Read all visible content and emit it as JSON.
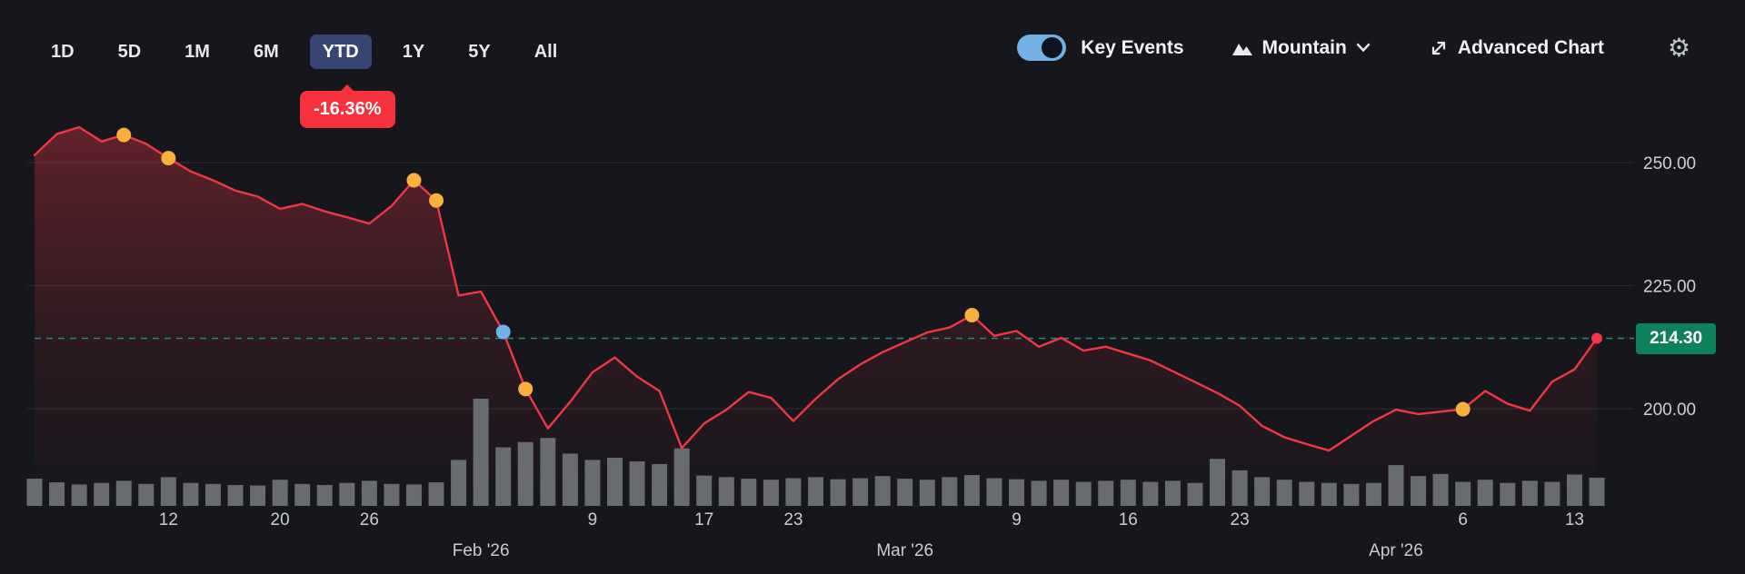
{
  "toolbar": {
    "ranges": [
      {
        "label": "1D",
        "active": false
      },
      {
        "label": "5D",
        "active": false
      },
      {
        "label": "1M",
        "active": false
      },
      {
        "label": "6M",
        "active": false
      },
      {
        "label": "YTD",
        "active": true
      },
      {
        "label": "1Y",
        "active": false
      },
      {
        "label": "5Y",
        "active": false
      },
      {
        "label": "All",
        "active": false
      }
    ],
    "ytd_change": "-16.36%",
    "key_events_label": "Key Events",
    "key_events_on": true,
    "chart_type": "Mountain",
    "advanced_chart_label": "Advanced Chart",
    "settings_icon": "gear-icon"
  },
  "colors": {
    "line": "#f23645",
    "fill_top": "rgba(242,54,69,0.32)",
    "event_yellow": "#f7b13c",
    "event_blue": "#70b2e9",
    "dashed": "#2f9277",
    "price_badge": "#0e815c",
    "change_badge": "#f5323e",
    "active_range_bg": "#364571",
    "toggle": "#72b1e6",
    "volume_bar": "#717479",
    "grid": "#2a2c33"
  },
  "chart_data": {
    "type": "area",
    "style": "mountain",
    "grid": true,
    "legend": "none",
    "ylim": [
      186,
      262
    ],
    "current_price": 214.3,
    "current_price_label": "214.30",
    "x": [
      "Jan 2",
      "Jan 5",
      "Jan 6",
      "Jan 7",
      "Jan 8",
      "Jan 9",
      "Jan 12",
      "Jan 13",
      "Jan 14",
      "Jan 15",
      "Jan 16",
      "Jan 20",
      "Jan 21",
      "Jan 22",
      "Jan 23",
      "Jan 26",
      "Jan 27",
      "Jan 28",
      "Jan 29",
      "Jan 30",
      "Feb 2",
      "Feb 3",
      "Feb 4",
      "Feb 5",
      "Feb 6",
      "Feb 9",
      "Feb 10",
      "Feb 11",
      "Feb 12",
      "Feb 13",
      "Feb 17",
      "Feb 18",
      "Feb 19",
      "Feb 20",
      "Feb 23",
      "Feb 24",
      "Feb 25",
      "Feb 26",
      "Feb 27",
      "Mar 2",
      "Mar 3",
      "Mar 4",
      "Mar 5",
      "Mar 6",
      "Mar 9",
      "Mar 10",
      "Mar 11",
      "Mar 12",
      "Mar 13",
      "Mar 16",
      "Mar 17",
      "Mar 18",
      "Mar 19",
      "Mar 20",
      "Mar 23",
      "Mar 24",
      "Mar 25",
      "Mar 26",
      "Mar 27",
      "Mar 30",
      "Mar 31",
      "Apr 1",
      "Apr 2",
      "Apr 3",
      "Apr 6",
      "Apr 7",
      "Apr 8",
      "Apr 9",
      "Apr 10",
      "Apr 13",
      "Apr 14"
    ],
    "close": [
      251.5,
      255.8,
      257.2,
      254.3,
      255.6,
      253.8,
      250.9,
      248.2,
      246.4,
      244.3,
      243.1,
      240.6,
      241.6,
      240.1,
      238.9,
      237.6,
      241.2,
      246.4,
      242.3,
      223.0,
      223.8,
      215.6,
      204.0,
      196.0,
      201.4,
      207.4,
      210.4,
      206.5,
      203.6,
      192.0,
      197.0,
      199.8,
      203.4,
      202.2,
      197.5,
      202.0,
      206.0,
      209.0,
      211.5,
      213.5,
      215.5,
      216.5,
      219.0,
      214.8,
      215.8,
      212.6,
      214.4,
      211.8,
      212.6,
      211.2,
      209.8,
      207.6,
      205.4,
      203.2,
      200.6,
      196.5,
      194.2,
      192.8,
      191.5,
      194.5,
      197.5,
      199.8,
      198.9,
      199.4,
      199.9,
      203.6,
      201.0,
      199.6,
      205.5,
      208.0,
      214.3
    ],
    "volume": [
      52,
      45,
      41,
      44,
      48,
      42,
      55,
      44,
      42,
      40,
      39,
      50,
      42,
      40,
      44,
      48,
      42,
      41,
      45,
      88,
      205,
      112,
      122,
      130,
      100,
      88,
      92,
      85,
      80,
      110,
      58,
      55,
      52,
      50,
      53,
      55,
      51,
      53,
      57,
      52,
      50,
      55,
      59,
      53,
      51,
      48,
      50,
      46,
      48,
      50,
      46,
      48,
      44,
      90,
      68,
      55,
      50,
      46,
      44,
      42,
      44,
      78,
      57,
      61,
      46,
      50,
      44,
      48,
      46,
      60,
      54
    ],
    "y_axis": [
      {
        "value": 250,
        "label": "250.00"
      },
      {
        "value": 225,
        "label": "225.00"
      },
      {
        "value": 200,
        "label": "200.00"
      }
    ],
    "x_ticks": [
      {
        "i": 6,
        "label": "12",
        "month": false
      },
      {
        "i": 11,
        "label": "20",
        "month": false
      },
      {
        "i": 15,
        "label": "26",
        "month": false
      },
      {
        "i": 20,
        "label": "Feb '26",
        "month": true
      },
      {
        "i": 25,
        "label": "9",
        "month": false
      },
      {
        "i": 30,
        "label": "17",
        "month": false
      },
      {
        "i": 34,
        "label": "23",
        "month": false
      },
      {
        "i": 39,
        "label": "Mar '26",
        "month": true
      },
      {
        "i": 44,
        "label": "9",
        "month": false
      },
      {
        "i": 49,
        "label": "16",
        "month": false
      },
      {
        "i": 54,
        "label": "23",
        "month": false
      },
      {
        "i": 61,
        "label": "Apr '26",
        "month": true
      },
      {
        "i": 64,
        "label": "6",
        "month": false
      },
      {
        "i": 69,
        "label": "13",
        "month": false
      }
    ],
    "events": [
      {
        "i": 4,
        "type": "yellow"
      },
      {
        "i": 6,
        "type": "yellow"
      },
      {
        "i": 17,
        "type": "yellow"
      },
      {
        "i": 18,
        "type": "yellow"
      },
      {
        "i": 21,
        "type": "blue"
      },
      {
        "i": 22,
        "type": "yellow"
      },
      {
        "i": 42,
        "type": "yellow"
      },
      {
        "i": 64,
        "type": "yellow"
      }
    ]
  }
}
